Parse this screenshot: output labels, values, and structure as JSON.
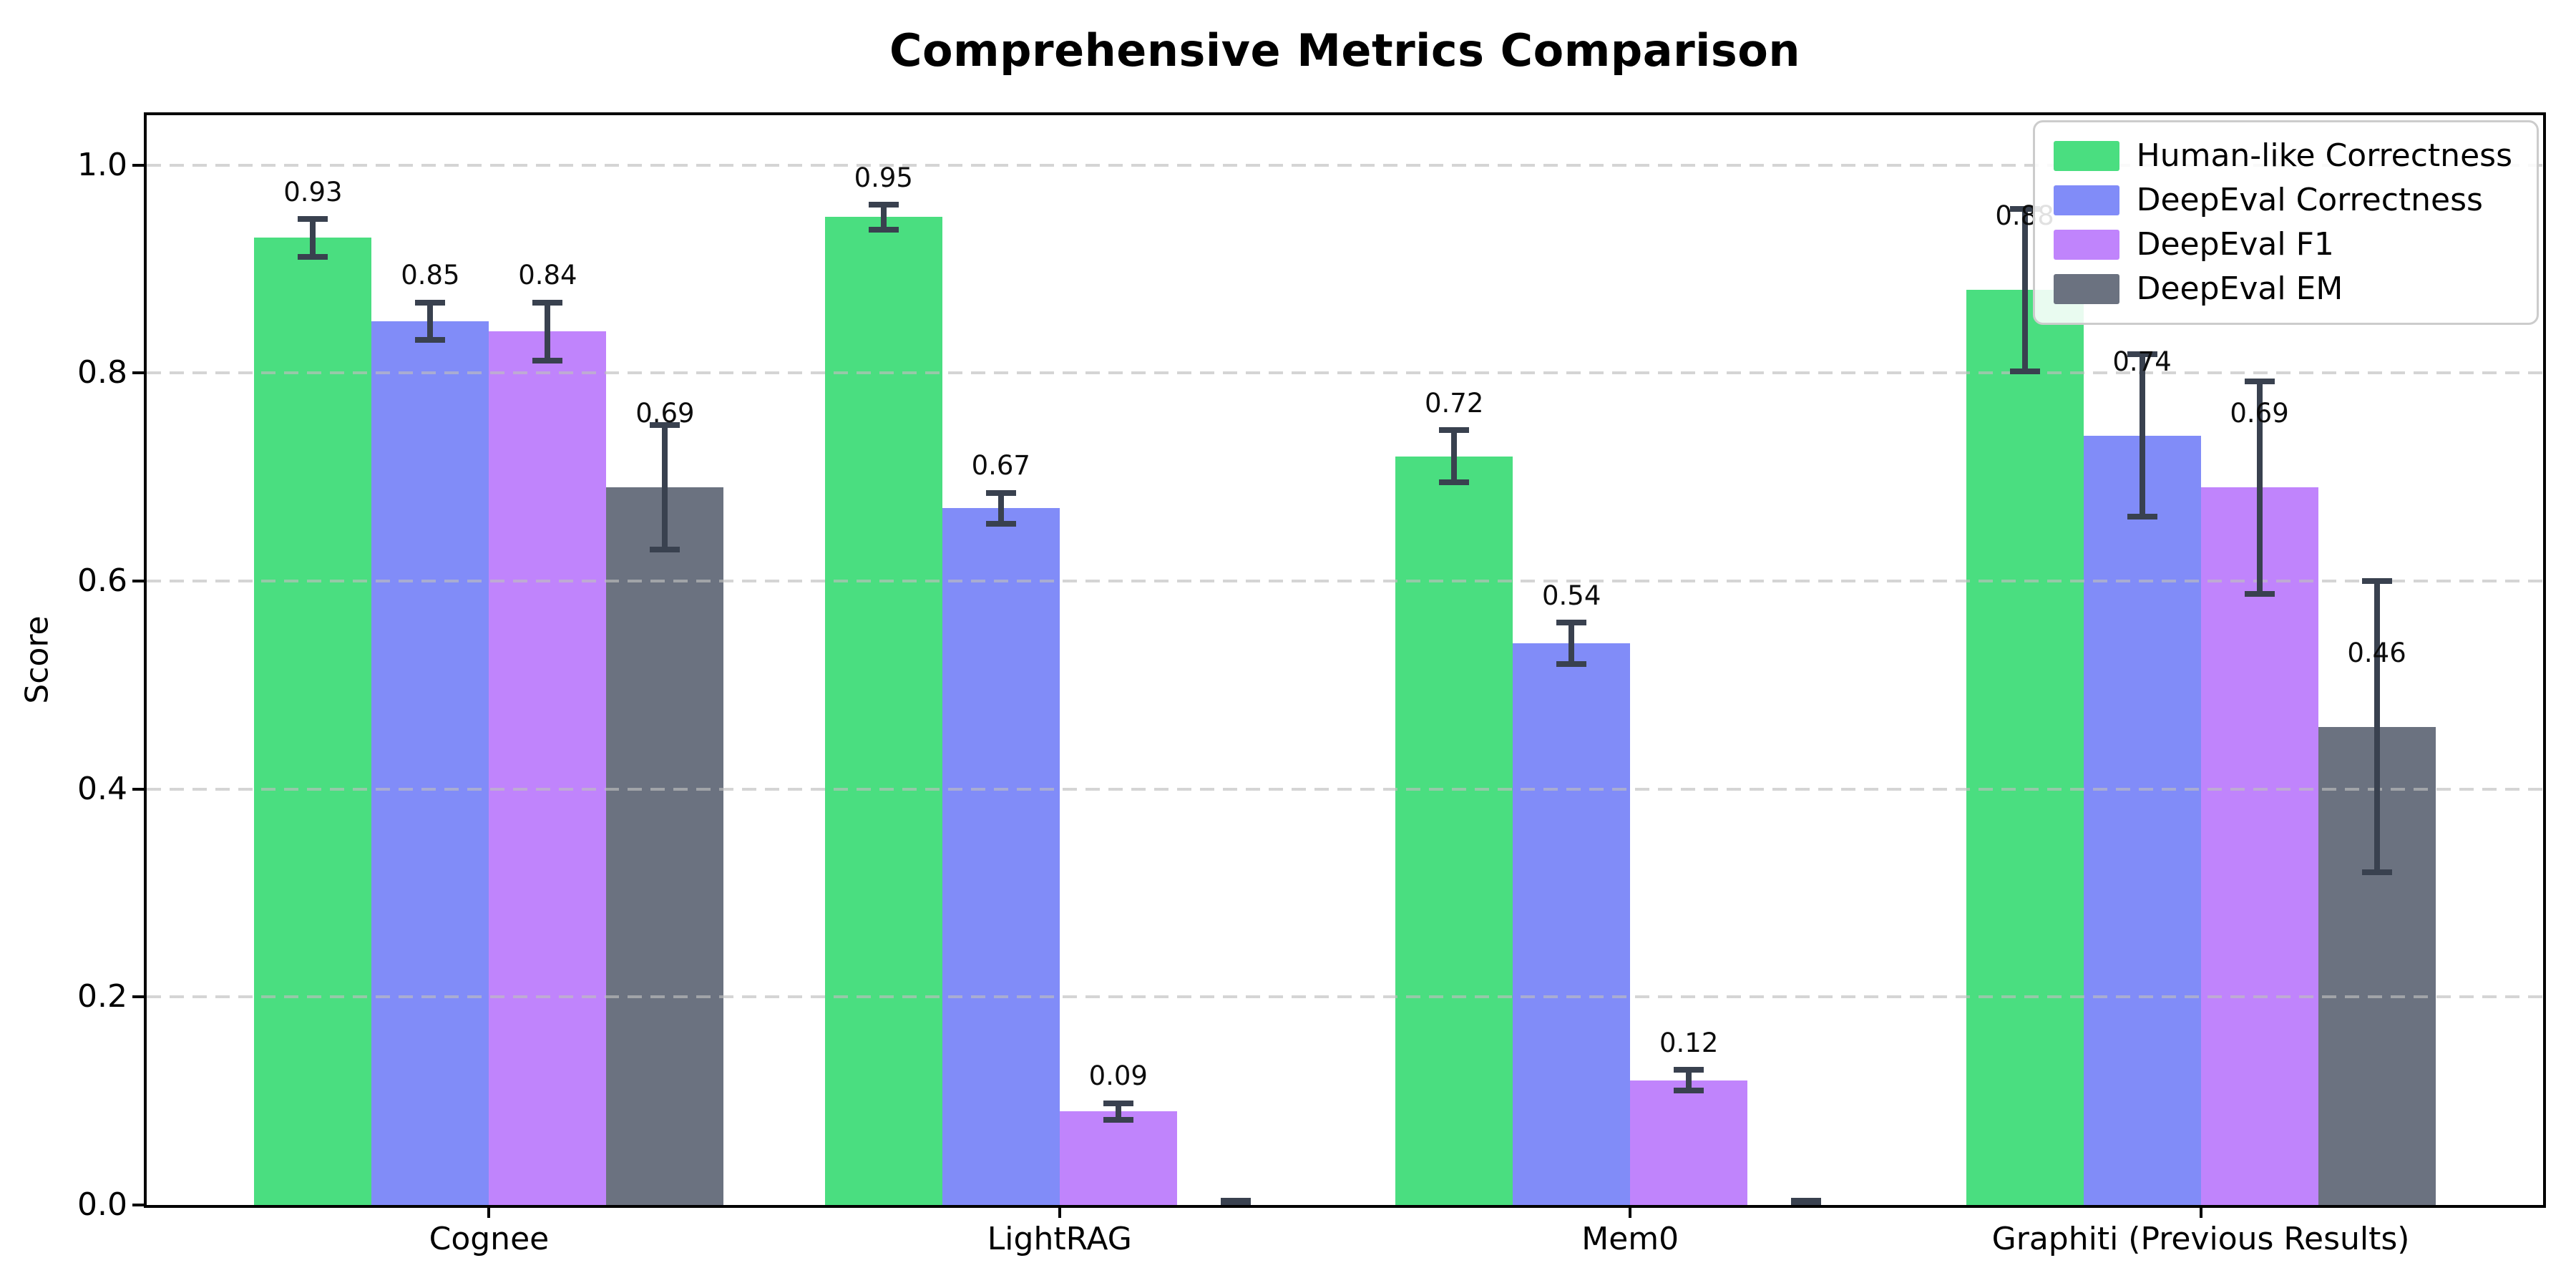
{
  "page": {
    "background": "#ffffff"
  },
  "chart_data": {
    "type": "bar",
    "title": "Comprehensive Metrics Comparison",
    "xlabel": "",
    "ylabel": "Score",
    "categories": [
      "Cognee",
      "LightRAG",
      "Mem0",
      "Graphiti (Previous Results)"
    ],
    "series": [
      {
        "name": "Human-like Correctness",
        "color": "#4ade80",
        "values": [
          0.93,
          0.95,
          0.72,
          0.88
        ],
        "errors": [
          0.018,
          0.012,
          0.025,
          0.078
        ],
        "labels": [
          "0.93",
          "0.95",
          "0.72",
          "0.88"
        ]
      },
      {
        "name": "DeepEval Correctness",
        "color": "#818cf8",
        "values": [
          0.85,
          0.67,
          0.54,
          0.74
        ],
        "errors": [
          0.018,
          0.015,
          0.02,
          0.078
        ],
        "labels": [
          "0.85",
          "0.67",
          "0.54",
          "0.74"
        ]
      },
      {
        "name": "DeepEval F1",
        "color": "#c084fc",
        "values": [
          0.84,
          0.09,
          0.12,
          0.69
        ],
        "errors": [
          0.028,
          0.008,
          0.01,
          0.102
        ],
        "labels": [
          "0.84",
          "0.09",
          "0.12",
          "0.69"
        ]
      },
      {
        "name": "DeepEval EM",
        "color": "#6b7280",
        "values": [
          0.69,
          0.0,
          0.0,
          0.46
        ],
        "errors": [
          0.06,
          0.004,
          0.004,
          0.14
        ],
        "labels": [
          "0.69",
          null,
          null,
          "0.46"
        ]
      }
    ],
    "ylim": [
      0.0,
      1.048
    ],
    "yticks": [
      0.0,
      0.2,
      0.4,
      0.6,
      0.8,
      1.0
    ],
    "ytick_labels": [
      "0.0",
      "0.2",
      "0.4",
      "0.6",
      "0.8",
      "1.0"
    ],
    "grid": {
      "axis": "y",
      "style": "dashed",
      "color": "#c9c9c9",
      "over_bars": true
    },
    "legend": {
      "position": "upper right"
    },
    "colors": {
      "error_bar": "#39414f",
      "spine": "#000000",
      "grid": "#c9c9c9",
      "text": "#000000",
      "background": "#ffffff"
    }
  }
}
